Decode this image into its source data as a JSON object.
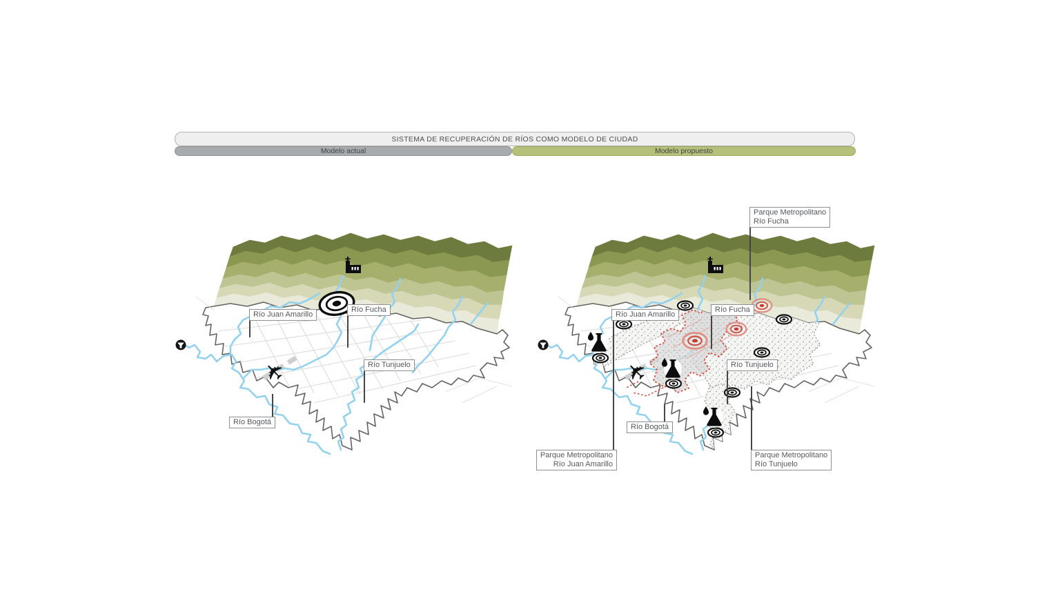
{
  "header": {
    "title": "SISTEMA DE RECUPERACIÓN DE RÍOS COMO MODELO DE CIUDAD",
    "tab_actual": "Modelo actual",
    "tab_propuesto": "Modelo propuesto"
  },
  "colors": {
    "titlebar_bg": "#efefef",
    "tab_actual_bg": "#a7abad",
    "tab_propuesto_bg": "#b5c07a",
    "river_blue": "#93d2ef",
    "mountain_bands": [
      "#6e7b3e",
      "#8a9851",
      "#a6b06c",
      "#bfc493",
      "#d6d8b6",
      "#e9ead9"
    ],
    "proposal_red": "#d63a2a"
  },
  "map_actual": {
    "labels": {
      "rio_juan_amarillo": "Río Juan Amarillo",
      "rio_fucha": "Río Fucha",
      "rio_tunjuelo": "Río Tunjuelo",
      "rio_bogota": "Río Bogotá"
    }
  },
  "map_propuesto": {
    "labels": {
      "rio_juan_amarillo": "Río Juan Amarillo",
      "rio_fucha": "Río Fucha",
      "rio_tunjuelo": "Río Tunjuelo",
      "rio_bogota": "Río Bogotá",
      "parque_fucha_l1": "Parque Metropolitano",
      "parque_fucha_l2": "Río Fucha",
      "parque_juan_amarillo_l1": "Parque Metropolitano",
      "parque_juan_amarillo_l2": "Río Juan Amarillo",
      "parque_tunjuelo_l1": "Parque Metropolitano",
      "parque_tunjuelo_l2": "Río Tunjuelo"
    }
  },
  "icons": {
    "airplane_glyph": "✈"
  }
}
